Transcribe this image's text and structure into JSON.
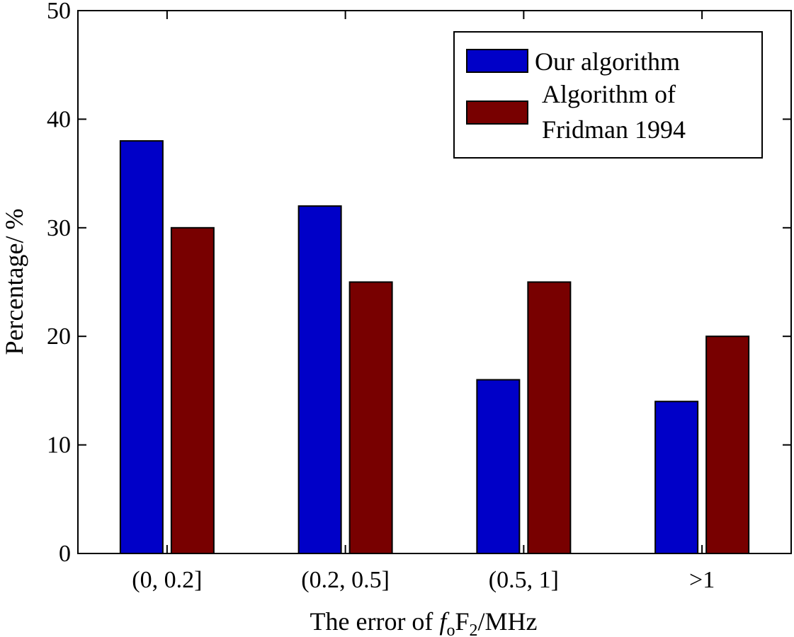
{
  "chart_data": {
    "type": "bar",
    "title": "",
    "xlabel": {
      "prefix": "The error of ",
      "f": "f",
      "f_sub": "o",
      "F": "F",
      "F_sub": "2",
      "suffix": "/MHz"
    },
    "ylabel": "Percentage/ %",
    "ylim": [
      0,
      50
    ],
    "yticks": [
      "0",
      "10",
      "20",
      "30",
      "40",
      "50"
    ],
    "categories": [
      "(0, 0.2]",
      "(0.2, 0.5]",
      "(0.5, 1]",
      ">1"
    ],
    "series": [
      {
        "name": "Our algorithm",
        "legend_lines": [
          "Our algorithm"
        ],
        "color": "#0000c8",
        "values": [
          38,
          32,
          16,
          14
        ]
      },
      {
        "name": "Algorithm of Fridman 1994",
        "legend_lines": [
          "Algorithm of",
          "Fridman 1994"
        ],
        "color": "#780000",
        "values": [
          30,
          25,
          25,
          20
        ]
      }
    ],
    "legend_position": "top-right",
    "grid": false
  }
}
